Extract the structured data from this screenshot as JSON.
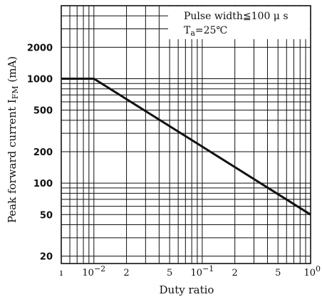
{
  "chart_data": {
    "type": "line",
    "xlabel": "Duty ratio",
    "ylabel": "Peak forward current I",
    "ylabel_sub": "FM",
    "ylabel_unit": " (mA)",
    "x_scale": "log",
    "y_scale": "log",
    "xlim": [
      0.005,
      1
    ],
    "ylim": [
      17,
      5000
    ],
    "grid": true,
    "x_ticks": [
      {
        "value": 0.005,
        "label": "ı"
      },
      {
        "value": 0.01,
        "label": "10",
        "exp": "−2"
      },
      {
        "value": 0.02,
        "label": "2"
      },
      {
        "value": 0.05,
        "label": "5"
      },
      {
        "value": 0.1,
        "label": "10",
        "exp": "−1"
      },
      {
        "value": 0.2,
        "label": "2"
      },
      {
        "value": 0.5,
        "label": "5"
      },
      {
        "value": 1,
        "label": "10",
        "exp": "0"
      }
    ],
    "y_ticks": [
      {
        "value": 20,
        "label": "20"
      },
      {
        "value": 50,
        "label": "50"
      },
      {
        "value": 100,
        "label": "100"
      },
      {
        "value": 200,
        "label": "200"
      },
      {
        "value": 500,
        "label": "500"
      },
      {
        "value": 1000,
        "label": "1000"
      },
      {
        "value": 2000,
        "label": "2000"
      }
    ],
    "series": [
      {
        "x": [
          0.005,
          0.01,
          1
        ],
        "y": [
          1000,
          1000,
          50
        ]
      }
    ],
    "annotation": {
      "line1": "Pulse width≦100 μ s",
      "line2_main": "T",
      "line2_sub": "a",
      "line2_rest": "=25℃"
    }
  }
}
